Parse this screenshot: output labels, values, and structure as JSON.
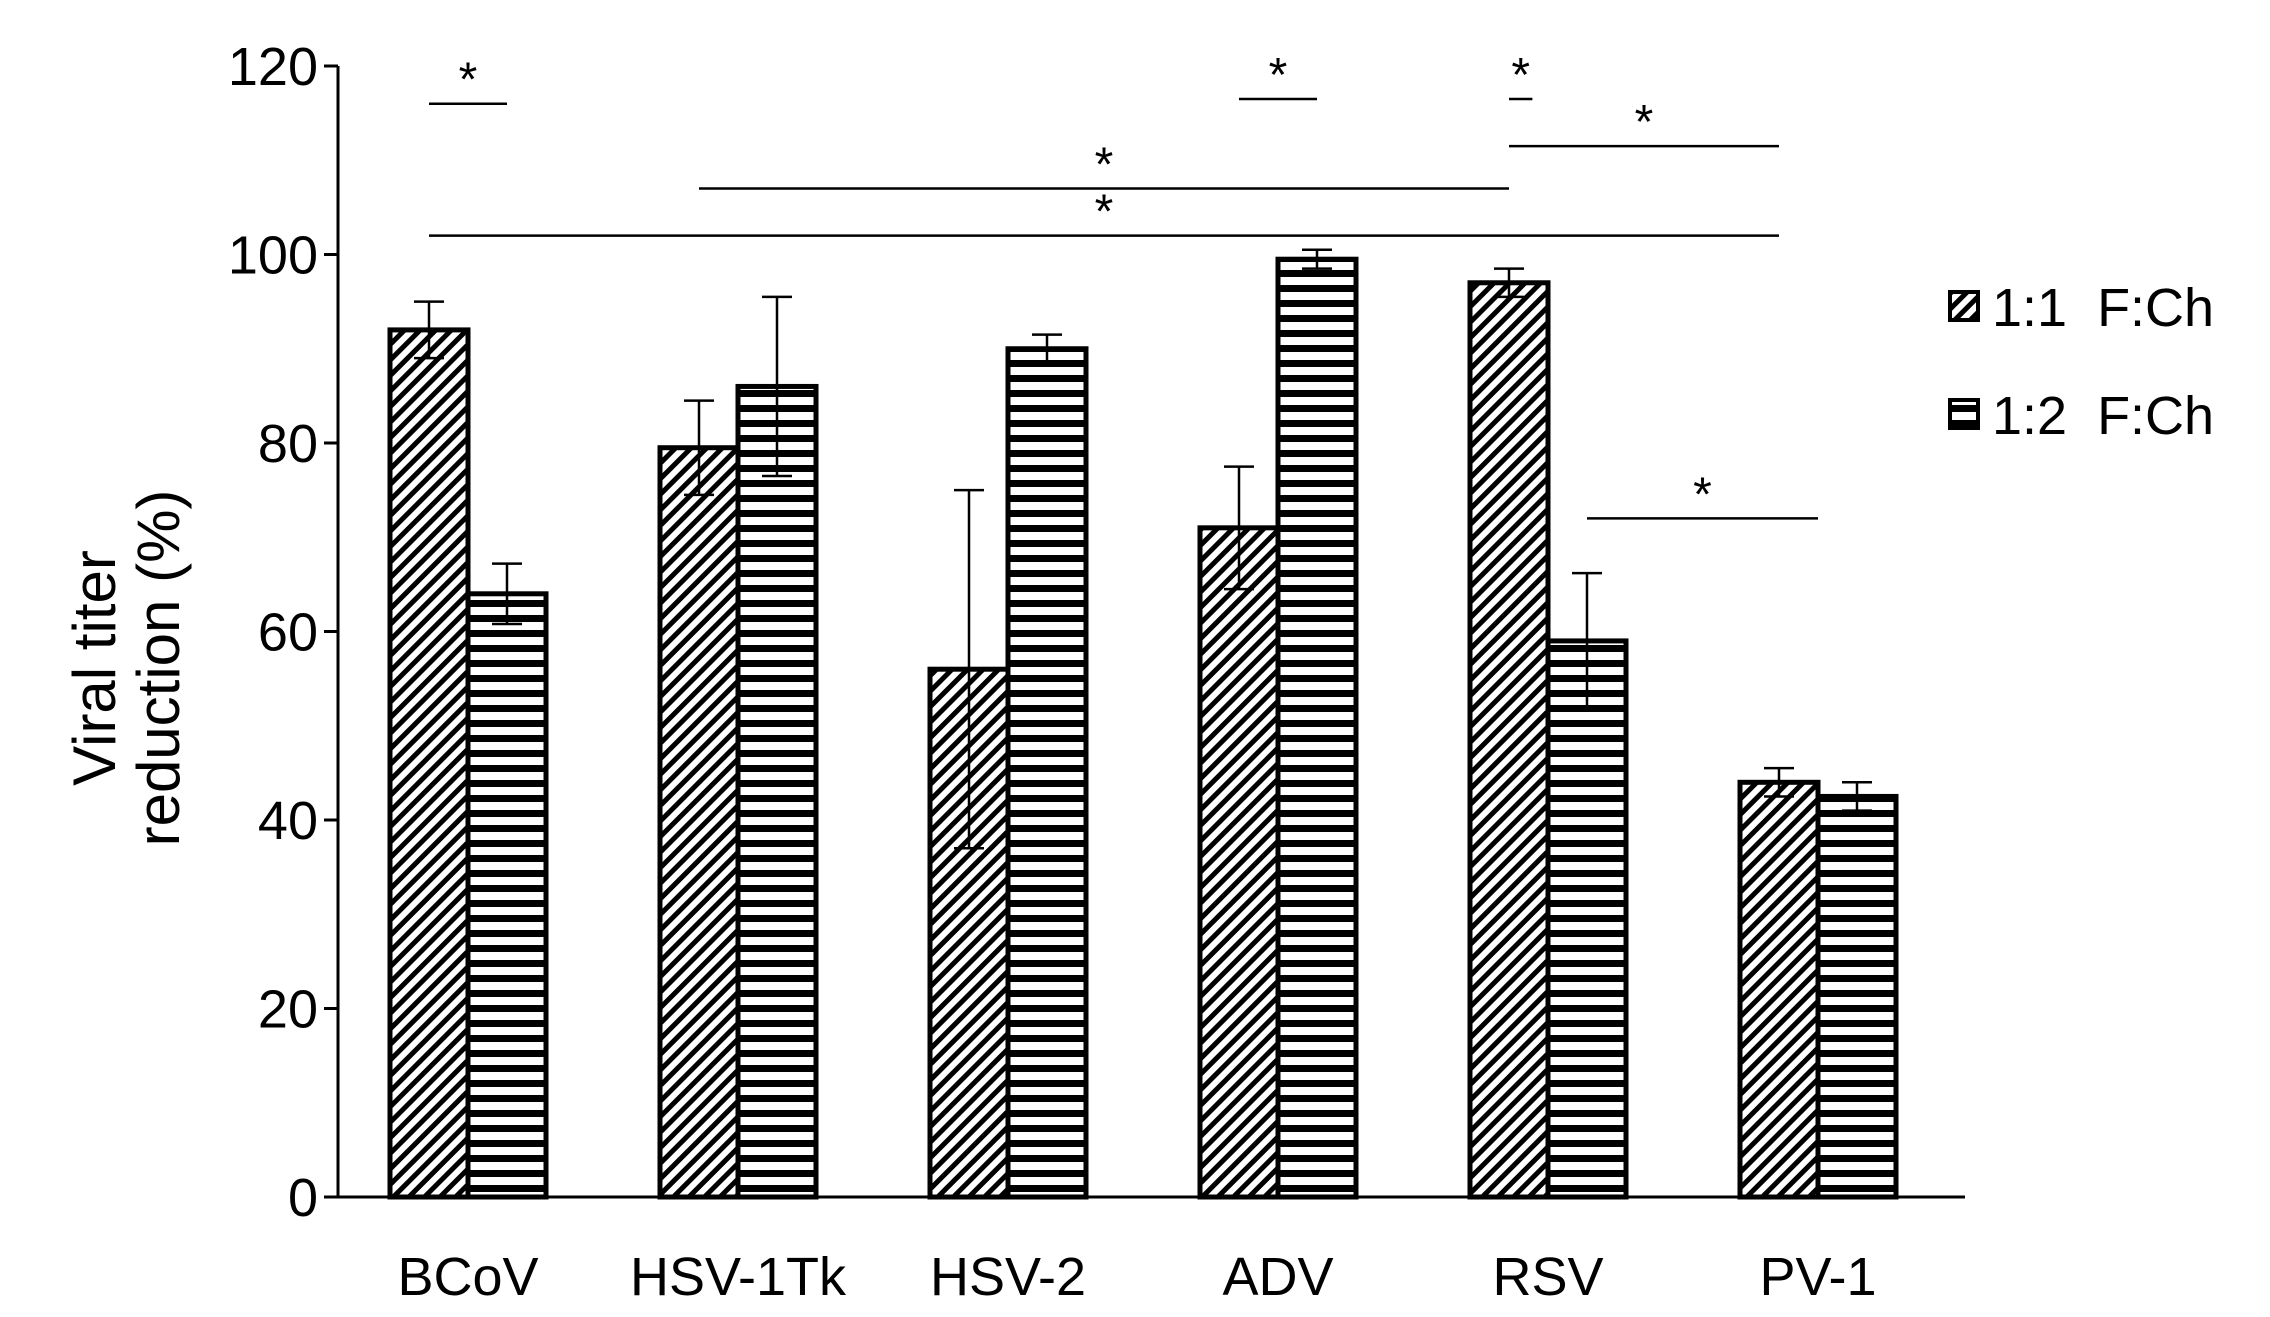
{
  "chart_data": {
    "type": "bar",
    "title": "",
    "xlabel": "",
    "ylabel": [
      "Viral titer",
      "reduction (%)"
    ],
    "ylim": [
      0,
      120
    ],
    "yticks": [
      0,
      20,
      40,
      60,
      80,
      100,
      120
    ],
    "yticks_labels": [
      "0",
      "20",
      "40",
      "60",
      "80",
      "100",
      "120"
    ],
    "categories": [
      "BCoV",
      "HSV-1Tk",
      "HSV-2",
      "ADV",
      "RSV",
      "PV-1"
    ],
    "series": [
      {
        "name": "1:1  F:Ch",
        "pattern": "diagonal",
        "values": [
          92,
          79.5,
          56,
          71,
          97,
          44
        ],
        "errors": [
          3,
          5,
          19,
          6.5,
          1.5,
          1.5
        ]
      },
      {
        "name": "1:2  F:Ch",
        "pattern": "horizontal",
        "values": [
          64,
          86,
          90,
          99.5,
          59,
          42.5
        ],
        "errors": [
          3.2,
          9.5,
          1.5,
          1,
          7.2,
          1.5
        ]
      }
    ],
    "significance": [
      {
        "label": "*",
        "from": [
          0,
          0
        ],
        "to": [
          0,
          1
        ],
        "y": 116
      },
      {
        "label": "*",
        "from": [
          3,
          0
        ],
        "to": [
          3,
          1
        ],
        "y": 116.5
      },
      {
        "label": "*",
        "from": [
          4,
          0
        ],
        "to": [
          4,
          0.3
        ],
        "y": 116.5
      },
      {
        "label": "*",
        "from": [
          4,
          0
        ],
        "to": [
          5,
          0
        ],
        "y": 111.5
      },
      {
        "label": "*",
        "from": [
          1,
          0
        ],
        "to": [
          4,
          0
        ],
        "y": 107
      },
      {
        "label": "*",
        "from": [
          0,
          0
        ],
        "to": [
          5,
          0
        ],
        "y": 102
      },
      {
        "label": "*",
        "from": [
          4,
          1
        ],
        "to": [
          5,
          0.5
        ],
        "y": 72
      }
    ],
    "legend_position": "right",
    "grid": false
  }
}
